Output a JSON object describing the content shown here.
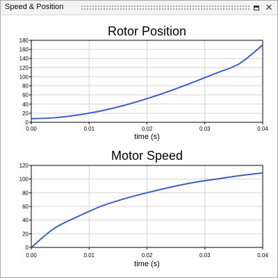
{
  "window": {
    "title": "Speed & Position",
    "maximize_icon": "maximize-icon",
    "close_icon": "close-icon"
  },
  "chart_data": [
    {
      "type": "line",
      "title": "Rotor Position",
      "xlabel": "time (s)",
      "ylabel": "",
      "xlim": [
        0,
        0.04
      ],
      "ylim": [
        0,
        180
      ],
      "xticks": [
        "0.00",
        "0.01",
        "0.02",
        "0.03",
        "0.04"
      ],
      "yticks": [
        "0",
        "20",
        "40",
        "60",
        "80",
        "100",
        "120",
        "140",
        "160",
        "180"
      ],
      "grid": true,
      "color": "#3a5fc4",
      "x": [
        0,
        0.004,
        0.008,
        0.012,
        0.016,
        0.02,
        0.024,
        0.028,
        0.032,
        0.036,
        0.04
      ],
      "y": [
        8,
        10,
        16,
        25,
        37,
        52,
        69,
        88,
        108,
        129,
        170
      ]
    },
    {
      "type": "line",
      "title": "Motor Speed",
      "xlabel": "time (s)",
      "ylabel": "",
      "xlim": [
        0,
        0.04
      ],
      "ylim": [
        0,
        120
      ],
      "xticks": [
        "0.00",
        "0.01",
        "0.02",
        "0.03",
        "0.04"
      ],
      "yticks": [
        "0",
        "20",
        "40",
        "60",
        "80",
        "100",
        "120"
      ],
      "grid": true,
      "color": "#3a5fc4",
      "x": [
        0,
        0.004,
        0.008,
        0.012,
        0.016,
        0.02,
        0.024,
        0.028,
        0.032,
        0.036,
        0.04
      ],
      "y": [
        0,
        28,
        45,
        60,
        71,
        80,
        88,
        95,
        100,
        105,
        109
      ]
    }
  ]
}
